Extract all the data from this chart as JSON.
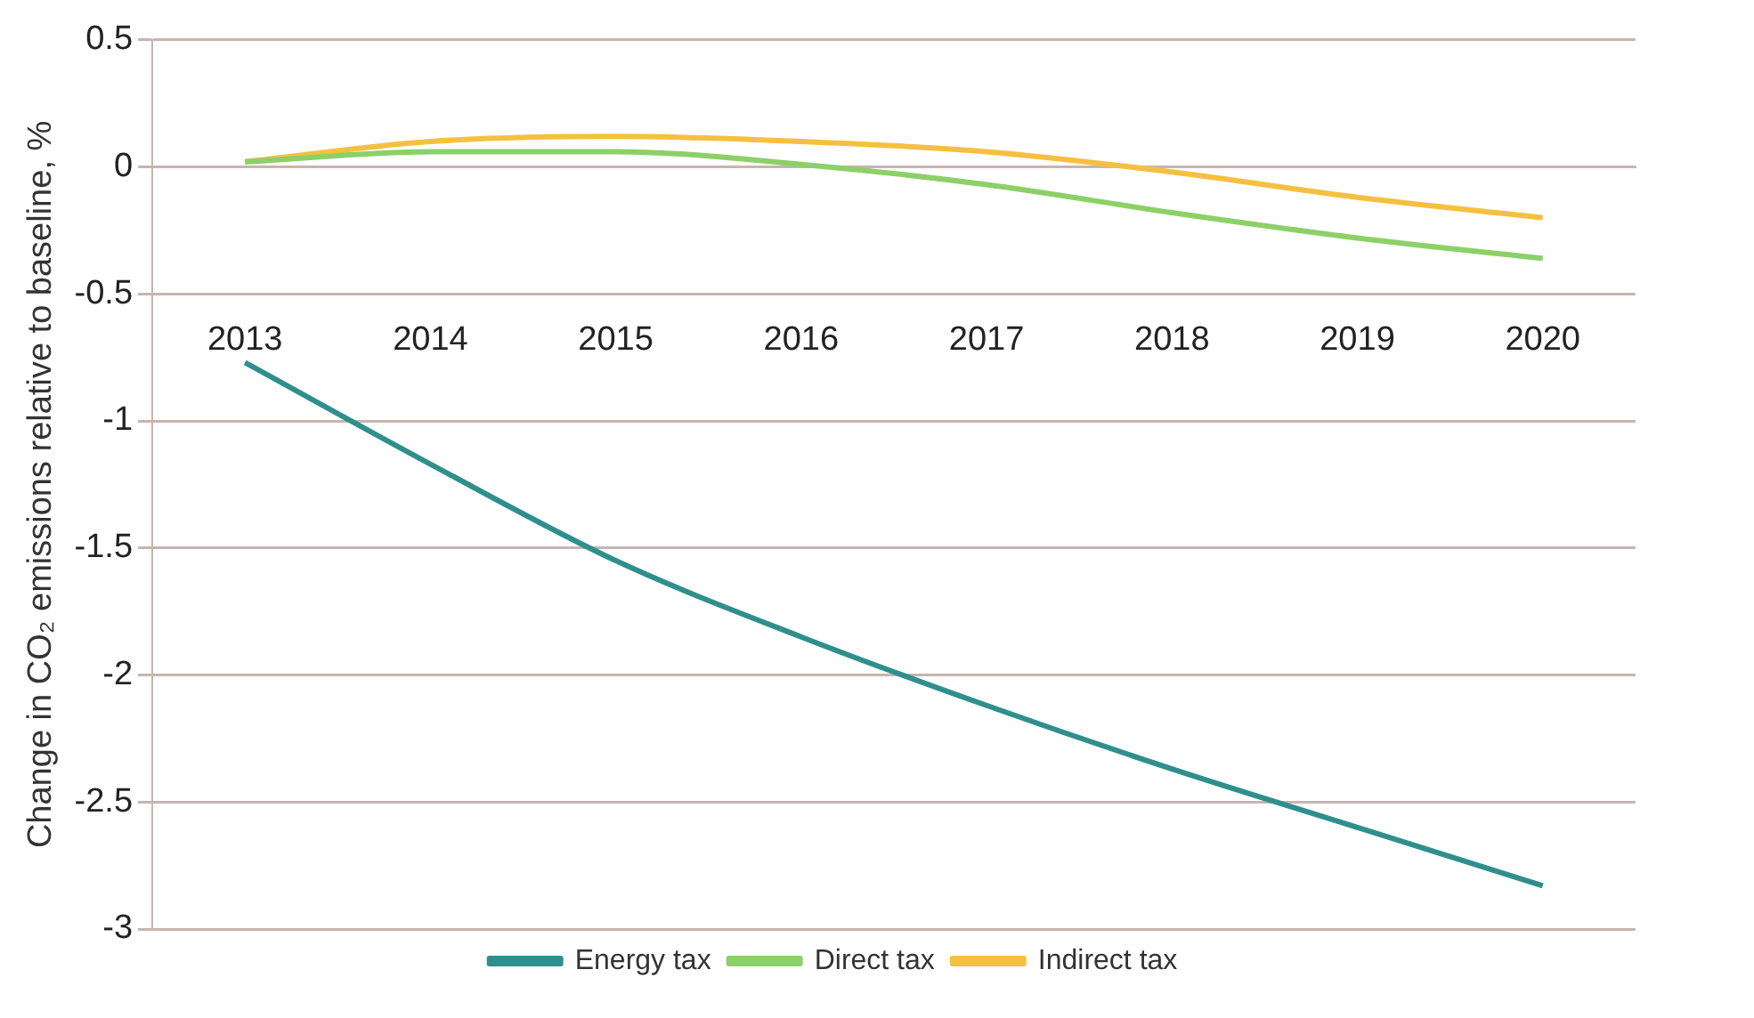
{
  "chart_data": {
    "type": "line",
    "ylabel": "Change in CO₂ emissions relative to baseline, %",
    "categories": [
      "2013",
      "2014",
      "2015",
      "2016",
      "2017",
      "2018",
      "2019",
      "2020"
    ],
    "series": [
      {
        "name": "Energy tax",
        "color": "#2f8f8c",
        "values": [
          -0.77,
          -1.17,
          -1.55,
          -1.85,
          -2.12,
          -2.37,
          -2.6,
          -2.83
        ]
      },
      {
        "name": "Direct tax",
        "color": "#8cd068",
        "values": [
          0.02,
          0.06,
          0.06,
          0.01,
          -0.07,
          -0.18,
          -0.28,
          -0.36
        ]
      },
      {
        "name": "Indirect tax",
        "color": "#f5c040",
        "values": [
          0.02,
          0.1,
          0.12,
          0.1,
          0.06,
          -0.02,
          -0.12,
          -0.2
        ]
      }
    ],
    "ylim": [
      -3,
      0.5
    ],
    "yticks": [
      0.5,
      0,
      -0.5,
      -1,
      -1.5,
      -2,
      -2.5,
      -3
    ],
    "grid": "y",
    "legend": "bottom",
    "marker": "none",
    "line_style": "solid"
  }
}
